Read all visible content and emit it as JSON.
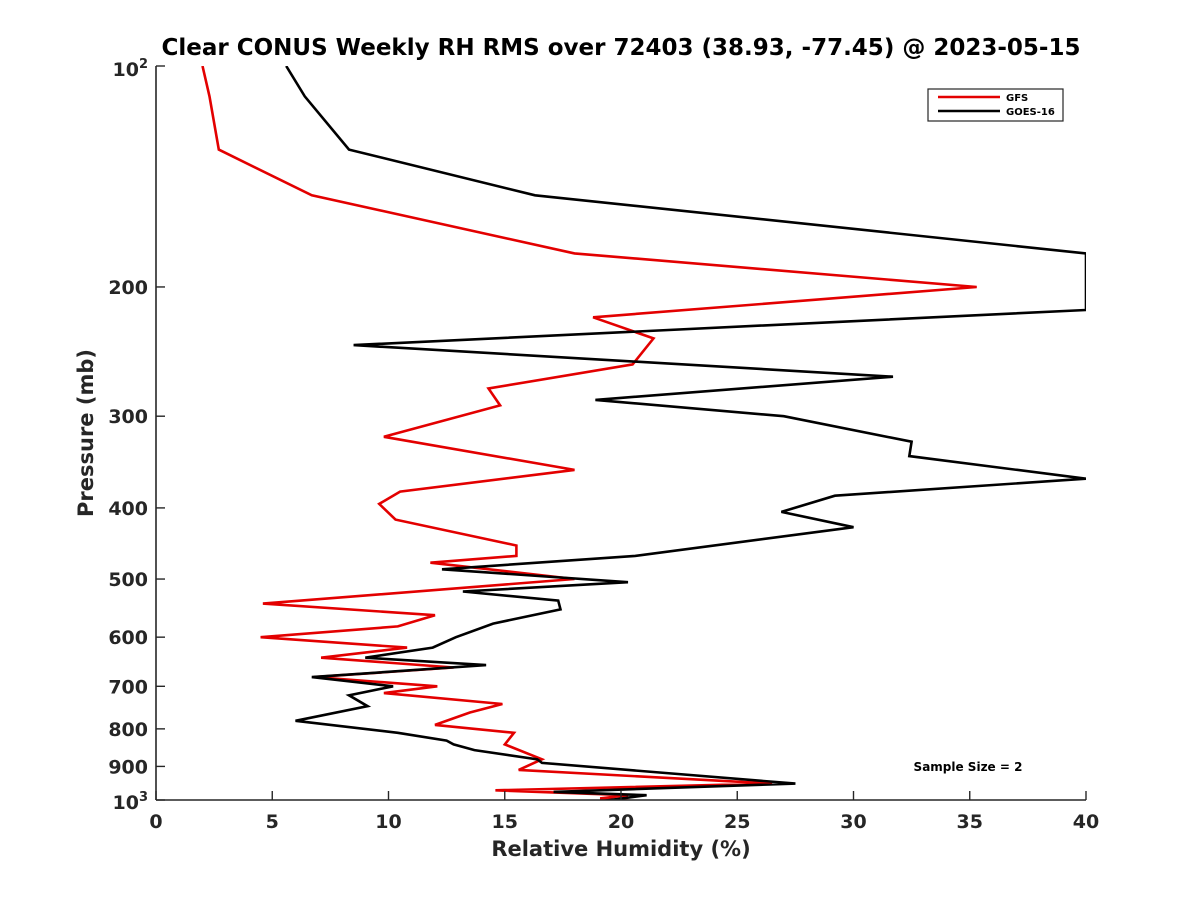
{
  "chart_data": {
    "type": "line",
    "title": "Clear CONUS Weekly RH RMS over 72403 (38.93, -77.45) @ 2023-05-15",
    "xlabel": "Relative Humidity (%)",
    "ylabel": "Pressure (mb)",
    "xlim": [
      0,
      40
    ],
    "ylim": [
      100,
      1000
    ],
    "y_scale": "log",
    "y_reversed": true,
    "grid": false,
    "legend_position": "top-right",
    "x_ticks": [
      "0",
      "5",
      "10",
      "15",
      "20",
      "25",
      "30",
      "35",
      "40"
    ],
    "y_ticks": [
      "200",
      "300",
      "400",
      "500",
      "600",
      "700",
      "800",
      "900"
    ],
    "y_tick_min_label": {
      "base": "10",
      "exp": "2"
    },
    "y_tick_max_label": {
      "base": "10",
      "exp": "3"
    },
    "annotation": "Sample Size = 2",
    "series": [
      {
        "name": "GFS",
        "color": "#e30000",
        "x": [
          2.0,
          2.3,
          2.7,
          6.7,
          18.0,
          35.3,
          18.8,
          21.4,
          20.5,
          14.3,
          14.8,
          9.8,
          18.0,
          10.5,
          9.6,
          10.3,
          15.5,
          15.5,
          11.8,
          18.0,
          4.6,
          12.0,
          10.4,
          4.5,
          10.8,
          7.1,
          12.8,
          6.8,
          12.1,
          9.8,
          14.9,
          13.5,
          12.0,
          15.4,
          15.0,
          16.6,
          15.6,
          26.5,
          14.6,
          20.3,
          19.1,
          20.9
        ],
        "y": [
          100,
          110,
          130,
          150,
          180,
          200,
          220,
          235,
          255,
          275,
          290,
          320,
          355,
          380,
          395,
          415,
          450,
          465,
          475,
          500,
          540,
          560,
          580,
          600,
          620,
          640,
          660,
          680,
          700,
          715,
          740,
          760,
          790,
          810,
          840,
          880,
          910,
          950,
          970,
          985,
          995,
          1005
        ]
      },
      {
        "name": "GOES-16",
        "color": "#000000",
        "x": [
          5.6,
          6.4,
          8.3,
          16.3,
          40.0,
          40.0,
          8.5,
          31.7,
          18.9,
          27.0,
          32.5,
          32.4,
          40.0,
          29.2,
          26.9,
          30.0,
          20.6,
          12.3,
          20.3,
          13.2,
          17.3,
          17.4,
          14.5,
          12.9,
          11.9,
          9.0,
          14.2,
          6.7,
          10.2,
          8.3,
          9.1,
          6.0,
          10.4,
          12.5,
          12.8,
          13.7,
          16.4,
          16.6,
          27.5,
          17.1,
          21.1,
          18.5
        ],
        "y": [
          100,
          110,
          130,
          150,
          180,
          215,
          240,
          265,
          285,
          300,
          325,
          340,
          365,
          385,
          405,
          425,
          465,
          485,
          505,
          520,
          535,
          550,
          575,
          600,
          620,
          640,
          655,
          680,
          700,
          720,
          745,
          780,
          810,
          830,
          840,
          855,
          880,
          890,
          950,
          975,
          985,
          1010
        ]
      }
    ]
  }
}
